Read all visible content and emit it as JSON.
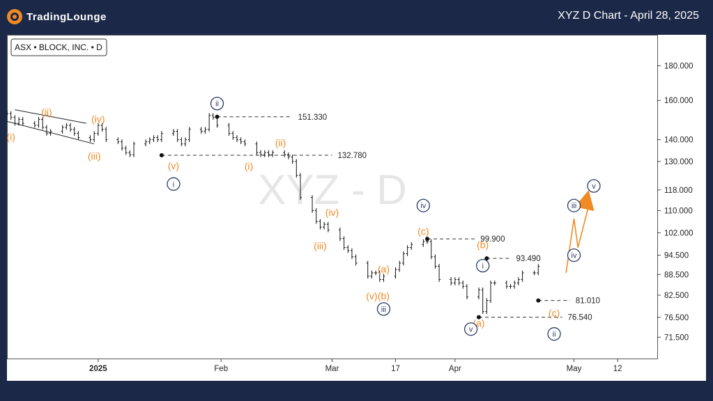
{
  "header": {
    "logo_text": "TradingLounge",
    "title": "XYZ D Chart - April 28, 2025"
  },
  "chart_data": {
    "type": "ohlc",
    "symbol_label": "ASX • BLOCK, INC. • D",
    "watermark": "XYZ - D",
    "y_axis": {
      "scale": "log",
      "ticks": [
        "180.000",
        "160.000",
        "140.000",
        "130.000",
        "118.000",
        "110.000",
        "102.000",
        "94.500",
        "88.500",
        "82.500",
        "76.500",
        "71.500"
      ],
      "ylim": [
        66.5,
        200
      ]
    },
    "x_axis": {
      "ticks": [
        "2025",
        "Feb",
        "Mar",
        "17",
        "Apr",
        "May",
        "12"
      ],
      "start": "2024-12-09",
      "end": "2025-05-22"
    },
    "price_levels": [
      {
        "value": 151.33,
        "label": "151.330"
      },
      {
        "value": 132.78,
        "label": "132.780"
      },
      {
        "value": 99.9,
        "label": "99.900"
      },
      {
        "value": 93.49,
        "label": "93.490"
      },
      {
        "value": 81.01,
        "label": "81.010"
      },
      {
        "value": 76.54,
        "label": "76.540"
      }
    ],
    "closes": [
      153,
      151,
      148,
      150,
      148,
      147,
      150,
      146,
      143,
      144,
      146,
      147,
      145,
      143,
      141,
      140,
      143,
      147,
      145,
      140,
      139,
      136,
      134,
      133,
      138,
      139,
      140,
      141,
      140,
      143,
      144,
      140,
      138,
      140,
      145,
      144,
      145,
      152,
      151,
      147,
      143,
      141,
      140,
      139,
      138,
      134,
      133,
      134,
      133,
      134,
      133,
      132,
      130,
      124,
      115,
      110,
      106,
      104,
      105,
      103,
      100,
      97,
      96,
      94,
      92,
      88,
      89,
      89,
      87,
      88,
      90,
      92,
      95,
      97,
      98,
      99,
      99,
      94,
      91,
      87,
      86,
      87,
      86,
      85,
      82,
      84,
      78,
      81,
      86,
      86,
      85,
      85,
      86,
      87,
      89,
      89,
      91
    ],
    "wave_labels": {
      "orange": [
        "ii",
        "iv",
        "i",
        "iii",
        "v",
        "ii",
        "i",
        "iv",
        "iii",
        "c",
        "a",
        "v",
        "b",
        "b",
        "a",
        "c"
      ],
      "navy": [
        "ii",
        "i",
        "iv",
        "iii",
        "i",
        "v",
        "ii",
        "iii",
        "iv",
        "v"
      ]
    },
    "projection": [
      {
        "date": "2025-04-29",
        "value": 89.0
      },
      {
        "date": "2025-05-01",
        "value": 107.0
      },
      {
        "date": "2025-05-02",
        "value": 97.0
      },
      {
        "date": "2025-05-05",
        "value": 113.5
      }
    ]
  }
}
